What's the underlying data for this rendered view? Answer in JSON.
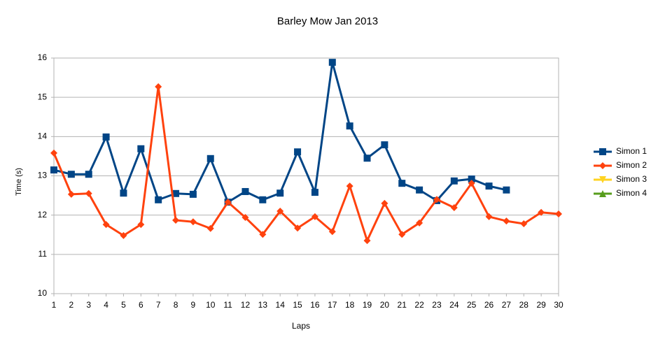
{
  "chart_data": {
    "type": "line",
    "title": "Barley Mow Jan 2013",
    "x_label": "Laps",
    "y_label": "Time (s)",
    "categories": [
      "1",
      "2",
      "3",
      "4",
      "5",
      "6",
      "7",
      "8",
      "9",
      "10",
      "11",
      "12",
      "13",
      "14",
      "15",
      "16",
      "17",
      "18",
      "19",
      "20",
      "21",
      "22",
      "23",
      "24",
      "25",
      "26",
      "27",
      "28",
      "29",
      "30"
    ],
    "series": [
      {
        "name": "Simon 1",
        "color": "#004586",
        "marker": "square",
        "values": [
          13.15,
          13.04,
          13.04,
          13.99,
          12.56,
          13.69,
          12.39,
          12.55,
          12.53,
          13.44,
          12.33,
          12.6,
          12.39,
          12.56,
          13.61,
          12.58,
          15.89,
          14.27,
          13.45,
          13.79,
          12.81,
          12.64,
          12.37,
          12.87,
          12.92,
          12.74,
          12.64,
          null,
          null,
          null
        ]
      },
      {
        "name": "Simon 2",
        "color": "#ff420e",
        "marker": "diamond",
        "values": [
          13.58,
          12.53,
          12.55,
          11.76,
          11.48,
          11.76,
          15.27,
          11.87,
          11.83,
          11.66,
          12.33,
          11.94,
          11.51,
          12.1,
          11.67,
          11.96,
          11.58,
          12.74,
          11.35,
          12.3,
          11.51,
          11.8,
          12.4,
          12.19,
          12.81,
          11.96,
          11.85,
          11.78,
          12.07,
          12.03
        ]
      },
      {
        "name": "Simon 3",
        "color": "#ffd320",
        "marker": "triangle-down",
        "values": [
          null,
          null,
          null,
          null,
          null,
          null,
          null,
          null,
          null,
          null,
          null,
          null,
          null,
          null,
          null,
          null,
          null,
          null,
          null,
          null,
          null,
          null,
          null,
          null,
          null,
          null,
          null,
          null,
          null,
          null
        ]
      },
      {
        "name": "Simon 4",
        "color": "#579d1c",
        "marker": "triangle-up",
        "values": [
          null,
          null,
          null,
          null,
          null,
          null,
          null,
          null,
          null,
          null,
          null,
          null,
          null,
          null,
          null,
          null,
          null,
          null,
          null,
          null,
          null,
          null,
          null,
          null,
          null,
          null,
          null,
          null,
          null,
          null
        ]
      }
    ],
    "ylim": [
      10,
      16
    ],
    "yticks": [
      10,
      11,
      12,
      13,
      14,
      15,
      16
    ],
    "grid": true,
    "legend": "right"
  }
}
